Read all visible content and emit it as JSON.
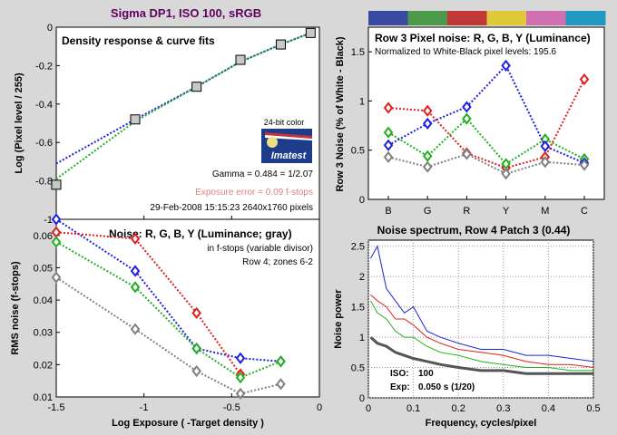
{
  "title": "Sigma DP1, ISO 100, sRGB",
  "colors": {
    "background": "#d8d8d8",
    "red": "#e02020",
    "green": "#20b020",
    "blue": "#2020e0",
    "gray": "#808080",
    "title": "#600060"
  },
  "color_bar": [
    "#3a4aa0",
    "#4a9a4a",
    "#c03838",
    "#e0c838",
    "#d070b0",
    "#2098c0"
  ],
  "chart_data": [
    {
      "type": "scatter",
      "title": "Density response & curve fits",
      "xlabel": "",
      "ylabel": "Log (Pixel level / 255)",
      "xlim": [
        -1.5,
        0
      ],
      "ylim": [
        -1,
        0
      ],
      "xticks": [
        "-1.5",
        "-1",
        "-0.5",
        "0"
      ],
      "yticks": [
        "0",
        "-0.2",
        "-0.4",
        "-0.6",
        "-0.8",
        "-1"
      ],
      "points": {
        "x": [
          -1.5,
          -1.05,
          -0.7,
          -0.45,
          -0.22,
          -0.05
        ],
        "y": [
          -0.82,
          -0.48,
          -0.31,
          -0.17,
          -0.09,
          -0.03
        ]
      },
      "fits": [
        {
          "color": "#2020e0",
          "x": [
            -1.5,
            -1.05,
            -0.7,
            -0.45,
            -0.22,
            -0.05
          ],
          "y": [
            -0.71,
            -0.48,
            -0.31,
            -0.18,
            -0.09,
            -0.03
          ]
        },
        {
          "color": "#20b020",
          "x": [
            -1.5,
            -1.05,
            -0.7,
            -0.45,
            -0.22,
            -0.05
          ],
          "y": [
            -0.79,
            -0.49,
            -0.31,
            -0.18,
            -0.09,
            -0.03
          ]
        }
      ],
      "logo": {
        "caption": "24-bit color",
        "name": "Imatest"
      },
      "gamma_text": "Gamma = 0.484 = 1/2.07",
      "exposure_error": "Exposure error = 0.09 f-stops",
      "date_text": "29-Feb-2008 15:15:23   2640x1760 pixels"
    },
    {
      "type": "line",
      "title": "Row 3 Pixel noise: R, G, B, Y (Luminance)",
      "subtitle": "Normalized to White-Black pixel levels: 195.6",
      "xlabel": "",
      "ylabel": "Row 3 Noise (% of White - Black)",
      "categories": [
        "B",
        "G",
        "R",
        "Y",
        "M",
        "C"
      ],
      "ylim": [
        0,
        1.75
      ],
      "yticks": [
        "0",
        "0.5",
        "1",
        "1.5"
      ],
      "series": [
        {
          "color": "#e02020",
          "values": [
            0.93,
            0.9,
            0.47,
            0.32,
            0.43,
            1.22
          ]
        },
        {
          "color": "#20b020",
          "values": [
            0.68,
            0.44,
            0.82,
            0.36,
            0.61,
            0.41
          ]
        },
        {
          "color": "#2020e0",
          "values": [
            0.55,
            0.77,
            0.94,
            1.36,
            0.54,
            0.37
          ]
        },
        {
          "color": "#808080",
          "values": [
            0.43,
            0.33,
            0.46,
            0.26,
            0.38,
            0.35
          ]
        }
      ]
    },
    {
      "type": "line",
      "title": "Noise: R, G, B, Y (Luminance; gray)",
      "subtitle": "in f-stops (variable divisor)",
      "note": "Row 4; zones 6-2",
      "xlabel": "Log Exposure ( -Target density )",
      "ylabel": "RMS noise (f-stops)",
      "xlim": [
        -1.5,
        0
      ],
      "ylim": [
        0.01,
        0.065
      ],
      "xticks": [
        "-1.5",
        "-1",
        "-0.5",
        "0"
      ],
      "yticks": [
        "0.01",
        "0.02",
        "0.03",
        "0.04",
        "0.05",
        "0.06"
      ],
      "x": [
        -1.5,
        -1.05,
        -0.7,
        -0.45,
        -0.22
      ],
      "series": [
        {
          "color": "#2020e0",
          "values": [
            0.065,
            0.049,
            0.025,
            0.022,
            0.021
          ]
        },
        {
          "color": "#e02020",
          "values": [
            0.061,
            0.059,
            0.036,
            0.017,
            null
          ]
        },
        {
          "color": "#20b020",
          "values": [
            0.058,
            0.044,
            0.025,
            0.016,
            0.021
          ]
        },
        {
          "color": "#808080",
          "values": [
            0.047,
            0.031,
            0.018,
            0.011,
            0.014
          ]
        }
      ]
    },
    {
      "type": "line",
      "title": "Noise spectrum, Row 4 Patch 3 (0.44)",
      "xlabel": "Frequency, cycles/pixel",
      "ylabel": "Noise power",
      "xlim": [
        0,
        0.5
      ],
      "ylim": [
        0,
        2.6
      ],
      "xticks": [
        "0",
        "0.1",
        "0.2",
        "0.3",
        "0.4",
        "0.5"
      ],
      "yticks": [
        "0",
        "0.5",
        "1",
        "1.5",
        "2",
        "2.5"
      ],
      "iso_label": "ISO:",
      "iso_value": "100",
      "exp_label": "Exp:",
      "exp_value": "0.050 s  (1/20)",
      "series": [
        {
          "color": "#2020e0",
          "x": [
            0.005,
            0.02,
            0.04,
            0.06,
            0.08,
            0.1,
            0.13,
            0.16,
            0.2,
            0.25,
            0.3,
            0.35,
            0.4,
            0.45,
            0.5
          ],
          "values": [
            2.3,
            2.5,
            1.8,
            1.6,
            1.4,
            1.5,
            1.1,
            1.0,
            0.9,
            0.8,
            0.8,
            0.7,
            0.7,
            0.65,
            0.6
          ]
        },
        {
          "color": "#e02020",
          "x": [
            0.005,
            0.02,
            0.04,
            0.06,
            0.08,
            0.1,
            0.13,
            0.16,
            0.2,
            0.25,
            0.3,
            0.35,
            0.4,
            0.45,
            0.5
          ],
          "values": [
            1.7,
            1.6,
            1.5,
            1.3,
            1.3,
            1.2,
            1.0,
            0.9,
            0.8,
            0.75,
            0.7,
            0.6,
            0.55,
            0.55,
            0.5
          ]
        },
        {
          "color": "#20b020",
          "x": [
            0.005,
            0.02,
            0.04,
            0.06,
            0.08,
            0.1,
            0.13,
            0.16,
            0.2,
            0.25,
            0.3,
            0.35,
            0.4,
            0.45,
            0.5
          ],
          "values": [
            1.6,
            1.4,
            1.3,
            1.1,
            1.0,
            1.0,
            0.85,
            0.75,
            0.7,
            0.6,
            0.55,
            0.5,
            0.5,
            0.45,
            0.45
          ]
        },
        {
          "color": "#555555",
          "x": [
            0.005,
            0.02,
            0.04,
            0.06,
            0.08,
            0.1,
            0.13,
            0.16,
            0.2,
            0.25,
            0.3,
            0.35,
            0.4,
            0.45,
            0.5
          ],
          "values": [
            1.0,
            0.9,
            0.85,
            0.75,
            0.7,
            0.65,
            0.6,
            0.55,
            0.5,
            0.45,
            0.45,
            0.4,
            0.4,
            0.4,
            0.4
          ]
        }
      ]
    }
  ]
}
